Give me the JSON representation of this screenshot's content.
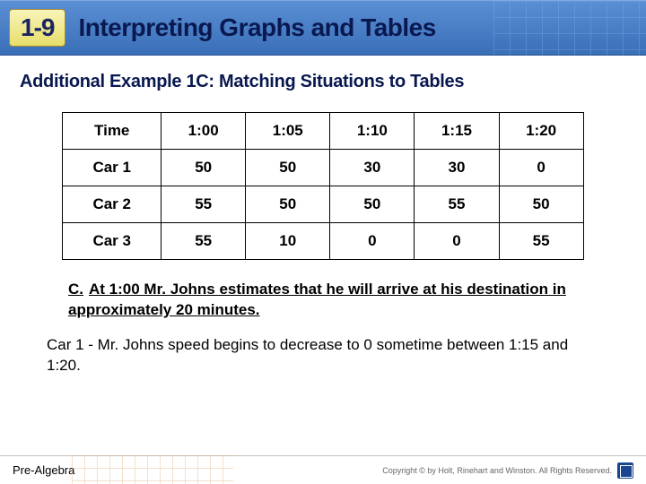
{
  "header": {
    "lesson_number": "1-9",
    "title": "Interpreting Graphs and Tables"
  },
  "subtitle": "Additional Example 1C: Matching Situations to Tables",
  "table": {
    "columns": [
      "Time",
      "1:00",
      "1:05",
      "1:10",
      "1:15",
      "1:20"
    ],
    "rows": [
      [
        "Car 1",
        "50",
        "50",
        "30",
        "30",
        "0"
      ],
      [
        "Car 2",
        "55",
        "50",
        "50",
        "55",
        "50"
      ],
      [
        "Car 3",
        "55",
        "10",
        "0",
        "0",
        "55"
      ]
    ],
    "cell_fontsize": 17,
    "border_color": "#000000",
    "header_fontweight": 900
  },
  "statement": {
    "label": "C.",
    "text": "At 1:00 Mr. Johns estimates that he will arrive at his destination in approximately 20 minutes."
  },
  "answer": "Car 1 - Mr. Johns speed begins to decrease to 0 sometime between 1:15 and 1:20.",
  "footer": {
    "book": "Pre-Algebra",
    "copyright": "Copyright © by Holt, Rinehart and Winston. All Rights Reserved."
  },
  "colors": {
    "header_bg_top": "#5a8fd4",
    "header_bg_bottom": "#3a6fb8",
    "badge_bg_top": "#f8f4b8",
    "badge_bg_bottom": "#e8de6a",
    "title_color": "#0a1850",
    "text_color": "#000000"
  }
}
